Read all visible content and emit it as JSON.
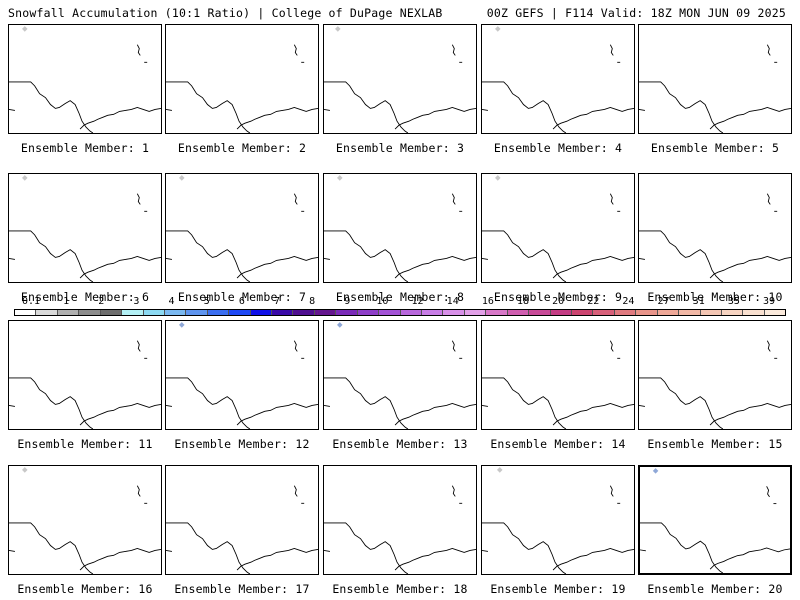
{
  "header": {
    "left": "Snowfall Accumulation (10:1 Ratio) | College of DuPage NEXLAB",
    "right": "00Z GEFS | F114 Valid: 18Z MON JUN 09 2025"
  },
  "panels": [
    {
      "label": "Ensemble Member: 1"
    },
    {
      "label": "Ensemble Member: 2"
    },
    {
      "label": "Ensemble Member: 3"
    },
    {
      "label": "Ensemble Member: 4"
    },
    {
      "label": "Ensemble Member: 5"
    },
    {
      "label": "Ensemble Member: 6"
    },
    {
      "label": "Ensemble Member: 7"
    },
    {
      "label": "Ensemble Member: 8"
    },
    {
      "label": "Ensemble Member: 9"
    },
    {
      "label": "Ensemble Member: 10"
    },
    {
      "label": "Ensemble Member: 11"
    },
    {
      "label": "Ensemble Member: 12"
    },
    {
      "label": "Ensemble Member: 13"
    },
    {
      "label": "Ensemble Member: 14"
    },
    {
      "label": "Ensemble Member: 15"
    },
    {
      "label": "Ensemble Member: 16"
    },
    {
      "label": "Ensemble Member: 17"
    },
    {
      "label": "Ensemble Member: 18"
    },
    {
      "label": "Ensemble Member: 19"
    },
    {
      "label": "Ensemble Member: 20",
      "selected": true
    }
  ],
  "colorbar": {
    "ticks": [
      "0.1",
      "1",
      "2",
      "3",
      "4",
      "5",
      "6",
      "7",
      "8",
      "9",
      "10",
      "12",
      "14",
      "16",
      "18",
      "20",
      "22",
      "24",
      "27",
      "31",
      "35",
      "39"
    ],
    "colors": [
      "#ffffff",
      "#d9d9d9",
      "#b0b0b0",
      "#8c8c8c",
      "#6e6e6e",
      "#b3f0f5",
      "#8cd9f2",
      "#7ab8f0",
      "#5f95ef",
      "#3b6ef0",
      "#1e48f5",
      "#1010e8",
      "#3a0aa8",
      "#4f0f90",
      "#64168e",
      "#7a2ab8",
      "#8e3ec8",
      "#a352d6",
      "#b867dc",
      "#c87de6",
      "#d890e8",
      "#e2a0e8",
      "#d878c8",
      "#d05eb0",
      "#c84a98",
      "#c43c84",
      "#cc4470",
      "#d8607a",
      "#e07a80",
      "#e8948a",
      "#efa898",
      "#f2b8a6",
      "#f4c6b4",
      "#f7d4c2",
      "#f9e0d0",
      "#fbeadc"
    ]
  }
}
